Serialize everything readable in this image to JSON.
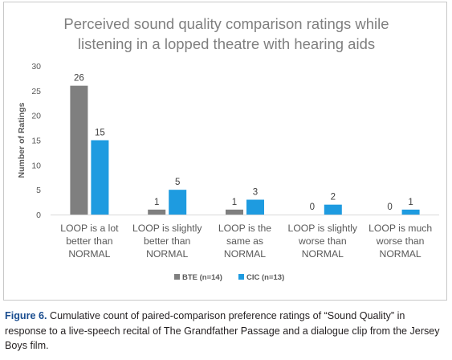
{
  "chart_data": {
    "type": "bar",
    "title_lines": [
      "Perceived sound quality comparison ratings while",
      "listening in a lopped theatre with hearing aids"
    ],
    "ylabel": "Number of Ratings",
    "xlabel": "",
    "ylim": [
      0,
      30
    ],
    "yticks": [
      0,
      5,
      10,
      15,
      20,
      25,
      30
    ],
    "grid": false,
    "legend_position": "bottom",
    "categories": [
      [
        "LOOP is a lot",
        "better than",
        "NORMAL"
      ],
      [
        "LOOP is slightly",
        "better than",
        "NORMAL"
      ],
      [
        "LOOP is the",
        "same as",
        "NORMAL"
      ],
      [
        "LOOP is slightly",
        "worse than",
        "NORMAL"
      ],
      [
        "LOOP is much",
        "worse than",
        "NORMAL"
      ]
    ],
    "series": [
      {
        "name": "BTE (n=14)",
        "color": "#7f7f7f",
        "values": [
          26,
          1,
          1,
          0,
          0
        ]
      },
      {
        "name": "CIC (n=13)",
        "color": "#1e9be0",
        "values": [
          15,
          5,
          3,
          2,
          1
        ]
      }
    ]
  },
  "caption": {
    "label": "Figure 6.",
    "text": " Cumulative count of paired-comparison preference ratings of “Sound Quality” in response to a live-speech recital of The Grandfather Passage and a dialogue clip from the Jersey Boys film."
  }
}
